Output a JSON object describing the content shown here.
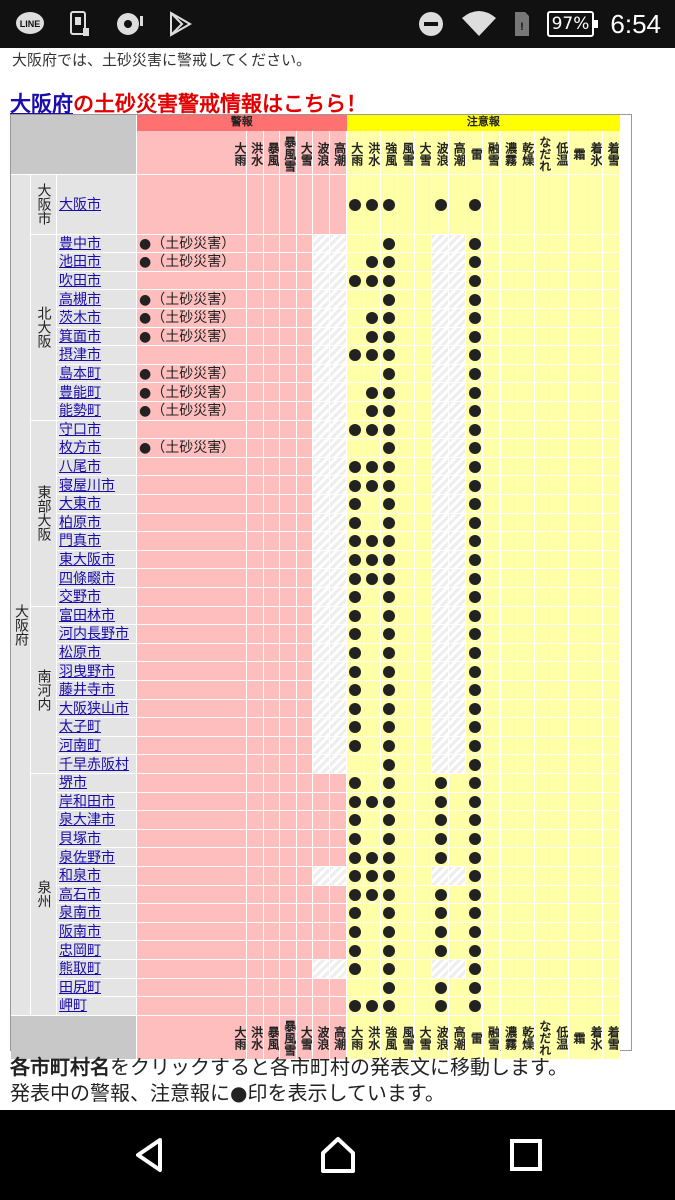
{
  "status_bar": {
    "battery": "97%",
    "time": "6:54",
    "icons": [
      "line-icon",
      "sim-icon",
      "record-icon",
      "play-store-icon",
      "dnd-icon",
      "wifi-icon",
      "sim-card-icon",
      "battery-icon"
    ]
  },
  "page": {
    "note_top": "大阪府では、土砂災害に警戒してください。",
    "headline_link": "大阪府",
    "headline_rest": "の土砂災害警戒情報はこちら！",
    "bottom_bold": "各市町村名",
    "bottom_rest": "をクリックすると各市町村の発表文に移動します。",
    "bottom_cut": "発表中の警報、注意報に●印を表示しています。"
  },
  "table": {
    "warning_group": "警報",
    "advisory_group": "注意報",
    "warning_cols": [
      "大雨",
      "洪水",
      "暴風",
      "暴風雪",
      "大雪",
      "波浪",
      "高潮"
    ],
    "advisory_cols": [
      "大雨",
      "洪水",
      "強風",
      "風雪",
      "大雪",
      "波浪",
      "高潮",
      "雷",
      "融雪",
      "濃霧",
      "乾燥",
      "なだれ",
      "低温",
      "霜",
      "着氷",
      "着雪"
    ],
    "prefecture": "大阪府",
    "dosha_label": "●（土砂災害）",
    "regions": [
      {
        "name": "大阪市",
        "rows": [
          {
            "city": "大阪市",
            "dosha": false,
            "adv": [
              0,
              1,
              2,
              5,
              7
            ],
            "hatch": false
          }
        ]
      },
      {
        "name": "北大阪",
        "rows": [
          {
            "city": "豊中市",
            "dosha": true,
            "adv": [
              2,
              7
            ],
            "hatch": true
          },
          {
            "city": "池田市",
            "dosha": true,
            "adv": [
              1,
              2,
              7
            ],
            "hatch": true
          },
          {
            "city": "吹田市",
            "dosha": false,
            "adv": [
              0,
              1,
              2,
              7
            ],
            "hatch": true
          },
          {
            "city": "高槻市",
            "dosha": true,
            "adv": [
              2,
              7
            ],
            "hatch": true
          },
          {
            "city": "茨木市",
            "dosha": true,
            "adv": [
              1,
              2,
              7
            ],
            "hatch": true
          },
          {
            "city": "箕面市",
            "dosha": true,
            "adv": [
              1,
              2,
              7
            ],
            "hatch": true
          },
          {
            "city": "摂津市",
            "dosha": false,
            "adv": [
              0,
              1,
              2,
              7
            ],
            "hatch": true
          },
          {
            "city": "島本町",
            "dosha": true,
            "adv": [
              2,
              7
            ],
            "hatch": true
          },
          {
            "city": "豊能町",
            "dosha": true,
            "adv": [
              1,
              2,
              7
            ],
            "hatch": true
          },
          {
            "city": "能勢町",
            "dosha": true,
            "adv": [
              1,
              2,
              7
            ],
            "hatch": true
          }
        ]
      },
      {
        "name": "東部大阪",
        "rows": [
          {
            "city": "守口市",
            "dosha": false,
            "adv": [
              0,
              1,
              2,
              7
            ],
            "hatch": true
          },
          {
            "city": "枚方市",
            "dosha": true,
            "adv": [
              2,
              7
            ],
            "hatch": true
          },
          {
            "city": "八尾市",
            "dosha": false,
            "adv": [
              0,
              1,
              2,
              7
            ],
            "hatch": true
          },
          {
            "city": "寝屋川市",
            "dosha": false,
            "adv": [
              0,
              1,
              2,
              7
            ],
            "hatch": true
          },
          {
            "city": "大東市",
            "dosha": false,
            "adv": [
              0,
              2,
              7
            ],
            "hatch": true
          },
          {
            "city": "柏原市",
            "dosha": false,
            "adv": [
              0,
              2,
              7
            ],
            "hatch": true
          },
          {
            "city": "門真市",
            "dosha": false,
            "adv": [
              0,
              1,
              2,
              7
            ],
            "hatch": true
          },
          {
            "city": "東大阪市",
            "dosha": false,
            "adv": [
              0,
              1,
              2,
              7
            ],
            "hatch": true
          },
          {
            "city": "四條畷市",
            "dosha": false,
            "adv": [
              0,
              1,
              2,
              7
            ],
            "hatch": true
          },
          {
            "city": "交野市",
            "dosha": false,
            "adv": [
              0,
              2,
              7
            ],
            "hatch": true
          }
        ]
      },
      {
        "name": "南河内",
        "rows": [
          {
            "city": "富田林市",
            "dosha": false,
            "adv": [
              0,
              2,
              7
            ],
            "hatch": true
          },
          {
            "city": "河内長野市",
            "dosha": false,
            "adv": [
              0,
              2,
              7
            ],
            "hatch": true
          },
          {
            "city": "松原市",
            "dosha": false,
            "adv": [
              0,
              2,
              7
            ],
            "hatch": true
          },
          {
            "city": "羽曳野市",
            "dosha": false,
            "adv": [
              0,
              2,
              7
            ],
            "hatch": true
          },
          {
            "city": "藤井寺市",
            "dosha": false,
            "adv": [
              0,
              2,
              7
            ],
            "hatch": true
          },
          {
            "city": "大阪狭山市",
            "dosha": false,
            "adv": [
              0,
              2,
              7
            ],
            "hatch": true
          },
          {
            "city": "太子町",
            "dosha": false,
            "adv": [
              0,
              2,
              7
            ],
            "hatch": true
          },
          {
            "city": "河南町",
            "dosha": false,
            "adv": [
              0,
              2,
              7
            ],
            "hatch": true
          },
          {
            "city": "千早赤阪村",
            "dosha": false,
            "adv": [
              2,
              7
            ],
            "hatch": true
          }
        ]
      },
      {
        "name": "泉州",
        "rows": [
          {
            "city": "堺市",
            "dosha": false,
            "adv": [
              0,
              2,
              5,
              7
            ],
            "hatch": false
          },
          {
            "city": "岸和田市",
            "dosha": false,
            "adv": [
              0,
              1,
              2,
              5,
              7
            ],
            "hatch": false
          },
          {
            "city": "泉大津市",
            "dosha": false,
            "adv": [
              0,
              2,
              5,
              7
            ],
            "hatch": false
          },
          {
            "city": "貝塚市",
            "dosha": false,
            "adv": [
              0,
              2,
              5,
              7
            ],
            "hatch": false
          },
          {
            "city": "泉佐野市",
            "dosha": false,
            "adv": [
              0,
              1,
              2,
              5,
              7
            ],
            "hatch": false
          },
          {
            "city": "和泉市",
            "dosha": false,
            "adv": [
              0,
              1,
              2,
              7
            ],
            "hatch": true
          },
          {
            "city": "高石市",
            "dosha": false,
            "adv": [
              0,
              1,
              2,
              5,
              7
            ],
            "hatch": false
          },
          {
            "city": "泉南市",
            "dosha": false,
            "adv": [
              0,
              2,
              5,
              7
            ],
            "hatch": false
          },
          {
            "city": "阪南市",
            "dosha": false,
            "adv": [
              0,
              2,
              5,
              7
            ],
            "hatch": false
          },
          {
            "city": "忠岡町",
            "dosha": false,
            "adv": [
              0,
              2,
              5,
              7
            ],
            "hatch": false
          },
          {
            "city": "熊取町",
            "dosha": false,
            "adv": [
              0,
              2,
              7
            ],
            "hatch": true
          },
          {
            "city": "田尻町",
            "dosha": false,
            "adv": [
              2,
              5,
              7
            ],
            "hatch": false
          },
          {
            "city": "岬町",
            "dosha": false,
            "adv": [
              0,
              1,
              2,
              5,
              7
            ],
            "hatch": false
          }
        ]
      }
    ]
  },
  "colors": {
    "warning_bg": "#ffbebe",
    "warning_hdr": "#ff7070",
    "advisory_bg": "#ffffa8",
    "advisory_hdr": "#ffff00",
    "link": "#1a0dab",
    "headline_red": "#e00000"
  }
}
